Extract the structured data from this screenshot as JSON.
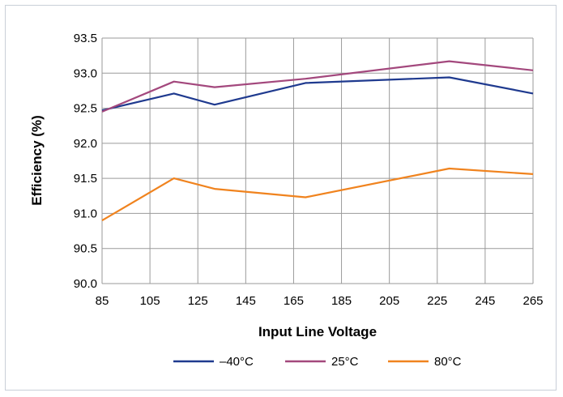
{
  "chart_data": {
    "type": "line",
    "title": "",
    "xlabel": "Input Line Voltage",
    "ylabel": "Efficiency (%)",
    "xlim": [
      85,
      265
    ],
    "ylim": [
      90.0,
      93.5
    ],
    "xticks": [
      "85",
      "105",
      "125",
      "145",
      "165",
      "185",
      "205",
      "225",
      "245",
      "265"
    ],
    "yticks": [
      "90.0",
      "90.5",
      "91.0",
      "91.5",
      "92.0",
      "92.5",
      "93.0",
      "93.5"
    ],
    "grid": true,
    "legend_position": "bottom",
    "series": [
      {
        "name": "–40°C",
        "color": "#1f3a8f",
        "x": [
          85,
          115,
          132,
          170,
          230,
          265
        ],
        "y": [
          92.47,
          92.71,
          92.55,
          92.86,
          92.94,
          92.71
        ]
      },
      {
        "name": "25°C",
        "color": "#a3487d",
        "x": [
          85,
          115,
          132,
          170,
          230,
          265
        ],
        "y": [
          92.45,
          92.88,
          92.8,
          92.92,
          93.17,
          93.04
        ]
      },
      {
        "name": "80°C",
        "color": "#f0831e",
        "x": [
          85,
          115,
          132,
          170,
          230,
          265
        ],
        "y": [
          90.9,
          91.5,
          91.35,
          91.23,
          91.64,
          91.56
        ]
      }
    ]
  }
}
